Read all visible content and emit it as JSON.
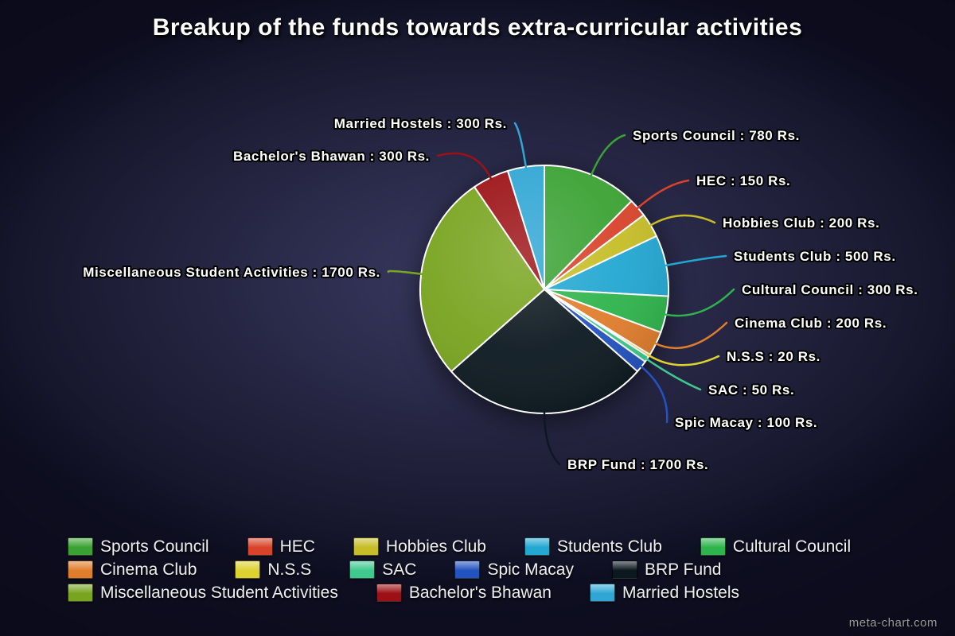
{
  "watermark": "meta-chart.com",
  "chart_data": {
    "type": "pie",
    "title": "Breakup of the funds towards extra-curricular activities",
    "unit": "Rs.",
    "label_format": "{name} : {value} Rs.",
    "total": 6300,
    "start_angle_deg": 0,
    "direction": "clockwise",
    "legend_position": "bottom",
    "background": "dark-navy-vignette",
    "slices": [
      {
        "name": "Sports Council",
        "value": 780,
        "color": "#3aa233"
      },
      {
        "name": "HEC",
        "value": 150,
        "color": "#d8432a"
      },
      {
        "name": "Hobbies Club",
        "value": 200,
        "color": "#c6bd27"
      },
      {
        "name": "Students Club",
        "value": 500,
        "color": "#22a7d2"
      },
      {
        "name": "Cultural Council",
        "value": 300,
        "color": "#2eb44c"
      },
      {
        "name": "Cinema Club",
        "value": 200,
        "color": "#e07d2c"
      },
      {
        "name": "N.S.S",
        "value": 20,
        "color": "#ddd230"
      },
      {
        "name": "SAC",
        "value": 50,
        "color": "#3fc98e"
      },
      {
        "name": "Spic Macay",
        "value": 100,
        "color": "#2353c0"
      },
      {
        "name": "BRP Fund",
        "value": 1700,
        "color": "#0c1820"
      },
      {
        "name": "Miscellaneous Student Activities",
        "value": 1700,
        "color": "#78a41f"
      },
      {
        "name": "Bachelor's Bhawan",
        "value": 300,
        "color": "#9c1115"
      },
      {
        "name": "Married Hostels",
        "value": 300,
        "color": "#2fa6d4"
      }
    ]
  }
}
